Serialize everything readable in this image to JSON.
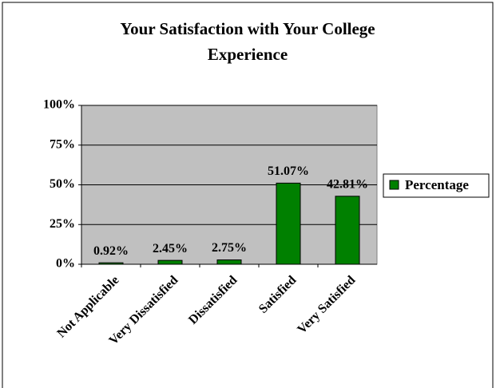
{
  "chart_data": {
    "type": "bar",
    "title": "Your Satisfaction with Your College Experience",
    "categories": [
      "Not Applicable",
      "Very Dissatisfied",
      "Dissatisfied",
      "Satisfied",
      "Very Satisfied"
    ],
    "series": [
      {
        "name": "Percentage",
        "color": "#008000",
        "values": [
          0.92,
          2.45,
          2.75,
          51.07,
          42.81
        ],
        "value_labels": [
          "0.92%",
          "2.45%",
          "2.75%",
          "51.07%",
          "42.81%"
        ]
      }
    ],
    "ylim": [
      0,
      100
    ],
    "yticks": [
      {
        "value": 0,
        "label": "0%"
      },
      {
        "value": 25,
        "label": "25%"
      },
      {
        "value": 50,
        "label": "50%"
      },
      {
        "value": 75,
        "label": "75%"
      },
      {
        "value": 100,
        "label": "100%"
      }
    ],
    "grid": true,
    "legend": "right"
  }
}
